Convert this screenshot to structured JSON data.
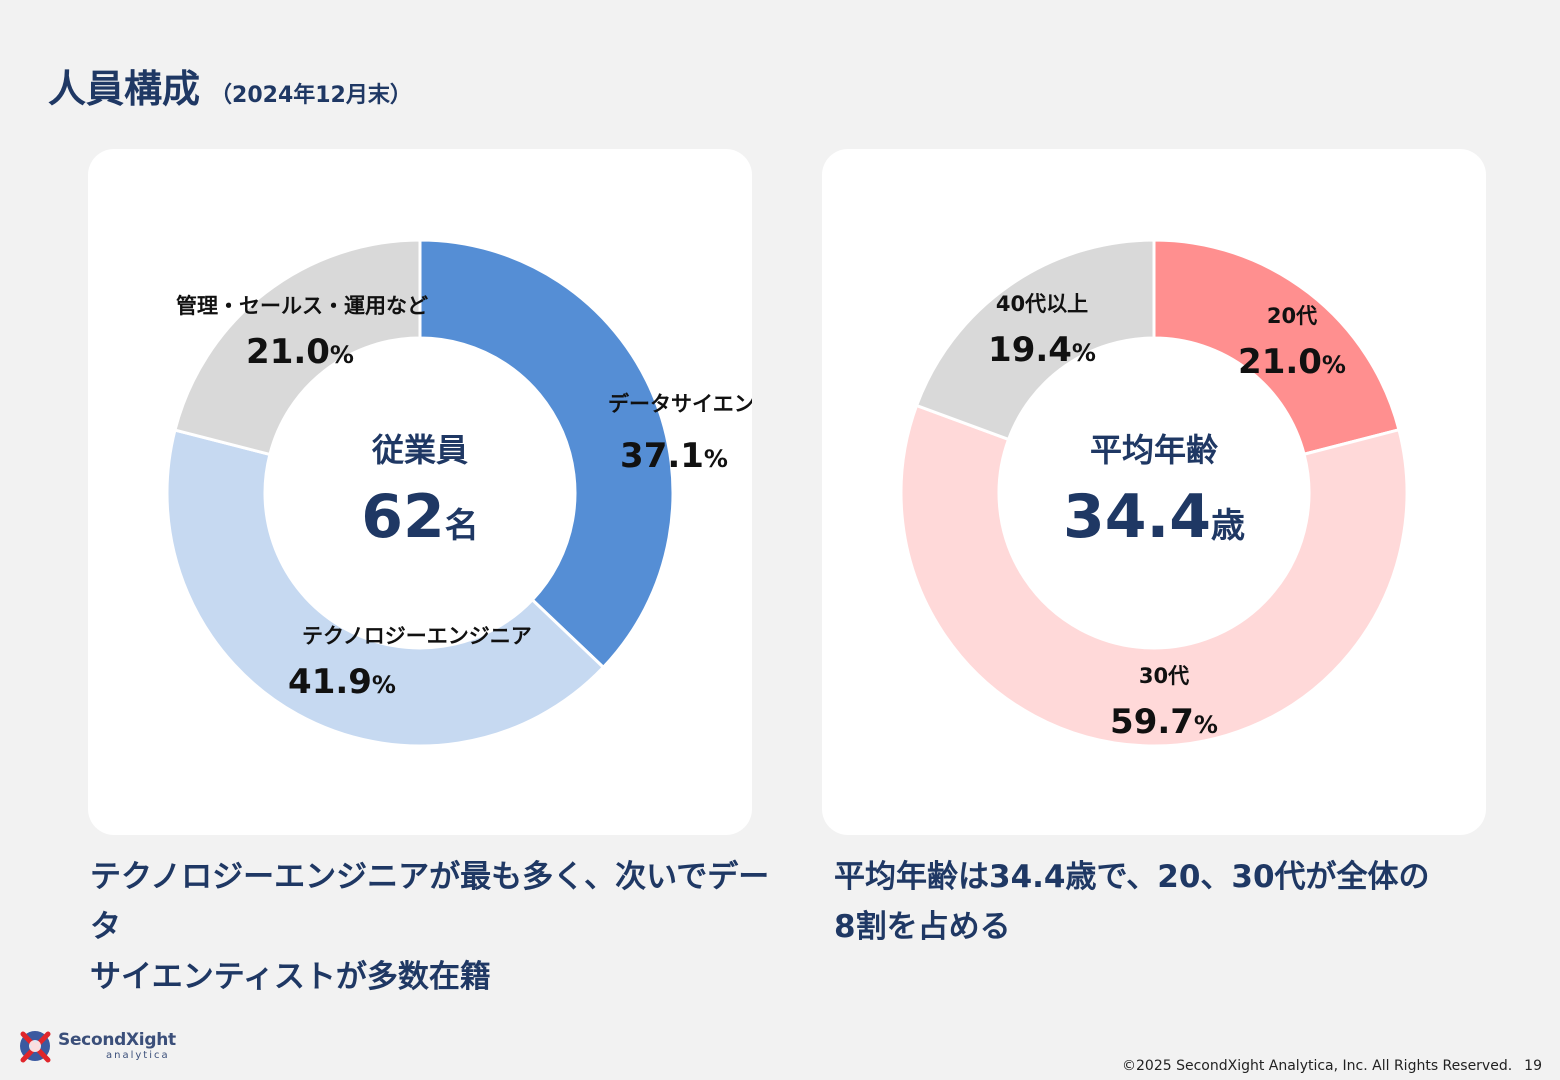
{
  "header": {
    "title": "人員構成",
    "subtitle": "（2024年12月末）"
  },
  "chart_data": [
    {
      "type": "pie",
      "title": "",
      "center_label": "従業員",
      "center_value": "62",
      "center_unit": "名",
      "categories": [
        "データサイエンティスト",
        "テクノロジーエンジニア",
        "管理・セールス・運用など"
      ],
      "values": [
        37.1,
        41.9,
        21.0
      ],
      "value_labels": [
        "37.1",
        "41.9",
        "21.0"
      ],
      "unit": "%",
      "colors": [
        "#558ed5",
        "#c6d9f1",
        "#d9d9d9"
      ],
      "style": "donut"
    },
    {
      "type": "pie",
      "title": "",
      "center_label": "平均年齢",
      "center_value": "34.4",
      "center_unit": "歳",
      "categories": [
        "20代",
        "30代",
        "40代以上"
      ],
      "values": [
        21.0,
        59.7,
        19.4
      ],
      "value_labels": [
        "21.0",
        "59.7",
        "19.4"
      ],
      "unit": "%",
      "colors": [
        "#ff8f8f",
        "#ffd9d9",
        "#d9d9d9"
      ],
      "style": "donut"
    }
  ],
  "captions": {
    "left": [
      "テクノロジーエンジニアが最も多く、次いでデータ",
      "サイエンティストが多数在籍"
    ],
    "right": [
      "平均年齢は34.4歳で、20、30代が全体の",
      "8割を占める"
    ]
  },
  "logo": {
    "name": "SecondXight",
    "sub": "analytica"
  },
  "footer": {
    "copyright": "©2025 SecondXight Analytica, Inc. All Rights Reserved.",
    "page": "19"
  }
}
